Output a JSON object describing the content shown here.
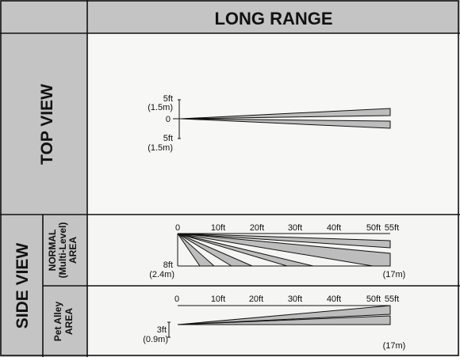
{
  "header": {
    "title": "LONG RANGE"
  },
  "top_view": {
    "label": "TOP VIEW",
    "upper_ft": "5ft",
    "upper_m": "(1.5m)",
    "zero": "0",
    "lower_ft": "5ft",
    "lower_m": "(1.5m)"
  },
  "side_view": {
    "label": "SIDE VIEW",
    "normal_area": {
      "label_line1": "NORMAL",
      "label_line2": "(Multi-Level)",
      "label_line3": "AREA",
      "ticks": [
        "0",
        "10ft",
        "20ft",
        "30ft",
        "40ft",
        "50ft",
        "55ft"
      ],
      "height_ft": "8ft",
      "height_m": "(2.4m)",
      "range_m": "(17m)"
    },
    "pet_alley_area": {
      "label_line1": "Pet Alley",
      "label_line2": "AREA",
      "ticks": [
        "0",
        "10ft",
        "20ft",
        "30ft",
        "40ft",
        "50ft",
        "55ft"
      ],
      "height_ft": "3ft",
      "height_m": "(0.9m)",
      "range_m": "(17m)"
    }
  },
  "colors": {
    "grid": "#111111",
    "label_fill": "#c4c4c4",
    "beam_fill": "#bdbdbd",
    "panel_fill": "#f7f7f5"
  }
}
